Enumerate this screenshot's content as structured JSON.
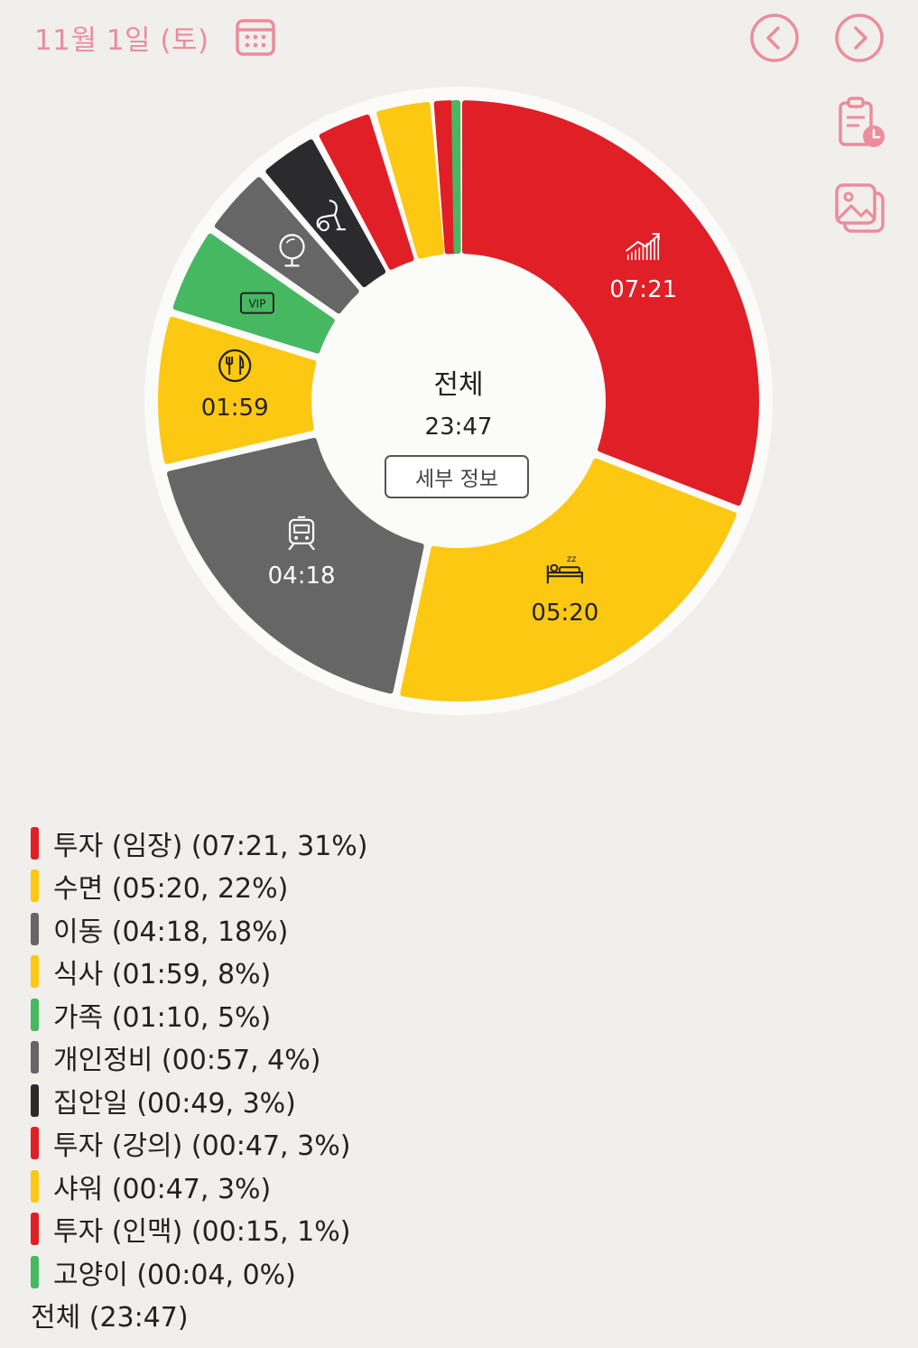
{
  "header": {
    "date": "11월 1일 (토)"
  },
  "colors": {
    "accent": "#ec8c9c",
    "red": "#e01f26",
    "yellow": "#fcc812",
    "gray": "#666666",
    "green": "#47b862",
    "black": "#2b2b2d"
  },
  "center": {
    "title": "전체",
    "total": "23:47",
    "detail_button": "세부 정보"
  },
  "chart_data": {
    "type": "pie",
    "segments": [
      {
        "label": "투자 (임장)",
        "value": "07:21",
        "minutes": 441,
        "percent": "31%",
        "color": "#e01f26",
        "icon": "growth-chart-icon",
        "show_label": true
      },
      {
        "label": "수면",
        "value": "05:20",
        "minutes": 320,
        "percent": "22%",
        "color": "#fcc812",
        "icon": "bed-icon",
        "show_label": true
      },
      {
        "label": "이동",
        "value": "04:18",
        "minutes": 258,
        "percent": "18%",
        "color": "#666666",
        "icon": "train-icon",
        "show_label": true
      },
      {
        "label": "식사",
        "value": "01:59",
        "minutes": 119,
        "percent": "8%",
        "color": "#fcc812",
        "icon": "utensils-icon",
        "show_label": true
      },
      {
        "label": "가족",
        "value": "01:10",
        "minutes": 70,
        "percent": "5%",
        "color": "#47b862",
        "icon": "vip-icon",
        "show_label": false
      },
      {
        "label": "개인정비",
        "value": "00:57",
        "minutes": 57,
        "percent": "4%",
        "color": "#666666",
        "icon": "mirror-icon",
        "show_label": false
      },
      {
        "label": "집안일",
        "value": "00:49",
        "minutes": 49,
        "percent": "3%",
        "color": "#2b2b2d",
        "icon": "vacuum-icon",
        "show_label": false
      },
      {
        "label": "투자 (강의)",
        "value": "00:47",
        "minutes": 47,
        "percent": "3%",
        "color": "#e01f26",
        "icon": "",
        "show_label": false
      },
      {
        "label": "샤워",
        "value": "00:47",
        "minutes": 47,
        "percent": "3%",
        "color": "#fcc812",
        "icon": "",
        "show_label": false
      },
      {
        "label": "투자 (인맥)",
        "value": "00:15",
        "minutes": 15,
        "percent": "1%",
        "color": "#e01f26",
        "icon": "",
        "show_label": false
      },
      {
        "label": "고양이",
        "value": "00:04",
        "minutes": 4,
        "percent": "0%",
        "color": "#47b862",
        "icon": "",
        "show_label": false
      }
    ],
    "total_label": "전체",
    "total_value": "23:47"
  }
}
